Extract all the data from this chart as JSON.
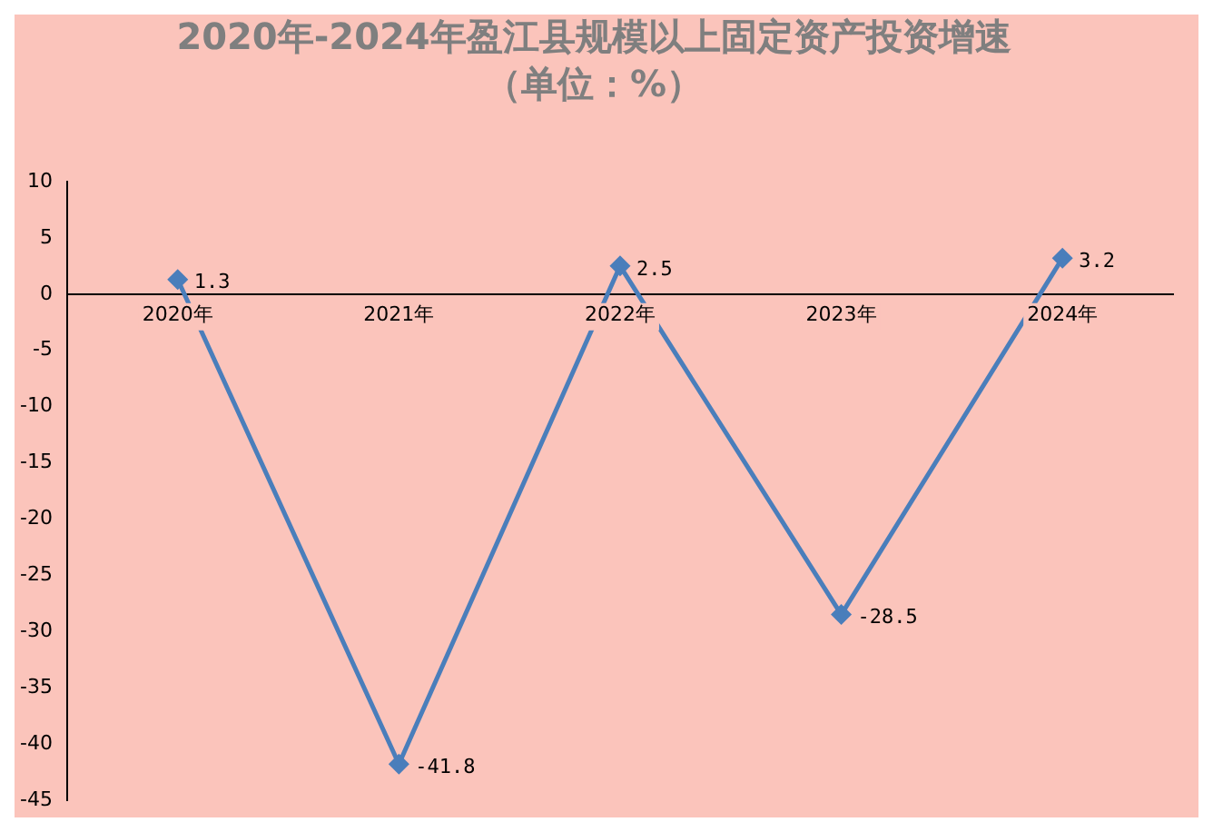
{
  "chart_data": {
    "type": "line",
    "title": "2020年-2024年盈江县规模以上固定资产投资增速",
    "subtitle": "（单位：%）",
    "categories": [
      "2020年",
      "2021年",
      "2022年",
      "2023年",
      "2024年"
    ],
    "series": [
      {
        "color": "#4a7ebb",
        "values": [
          1.3,
          -41.8,
          2.5,
          -28.5,
          3.2
        ]
      }
    ],
    "ylim": [
      -45,
      10
    ],
    "yticks": [
      -45,
      -40,
      -35,
      -30,
      -25,
      -20,
      -15,
      -10,
      -5,
      0,
      5,
      10
    ],
    "grid": false,
    "legend": false,
    "marker": "diamond",
    "line_style": "solid",
    "data_labels": true
  }
}
